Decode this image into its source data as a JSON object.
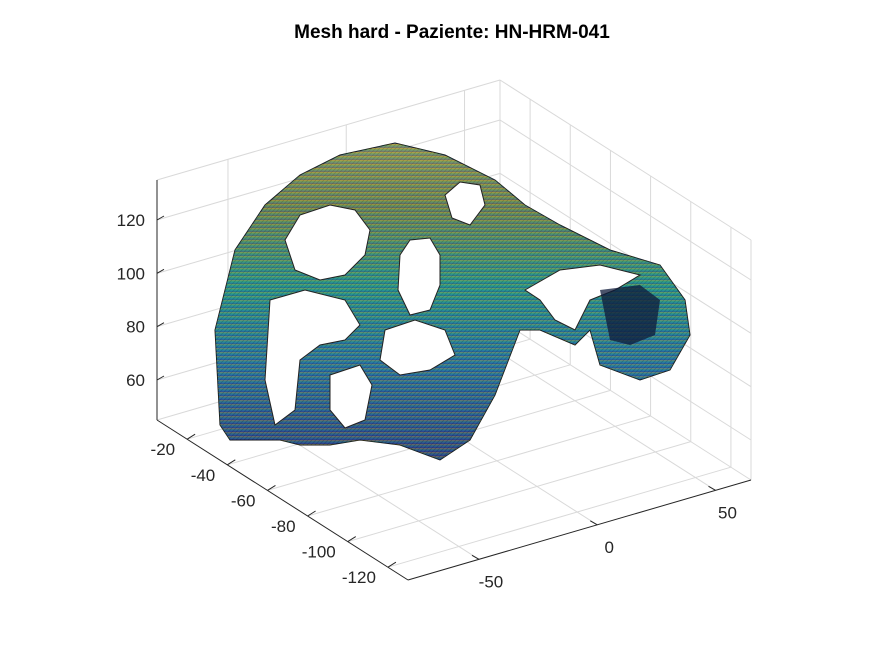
{
  "chart_data": {
    "type": "surface",
    "title": "Mesh hard - Paziente: HN-HRM-041",
    "xlabel": "",
    "ylabel": "",
    "zlabel": "",
    "grid": true,
    "colormap": "parula",
    "x_axis": {
      "ticks": [
        -50,
        0,
        50
      ],
      "range": [
        -80,
        65
      ]
    },
    "y_axis": {
      "ticks": [
        -20,
        -40,
        -60,
        -80,
        -100,
        -120
      ],
      "range": [
        -130,
        -5
      ]
    },
    "z_axis": {
      "ticks": [
        60,
        80,
        100,
        120
      ],
      "range": [
        45,
        135
      ]
    }
  }
}
